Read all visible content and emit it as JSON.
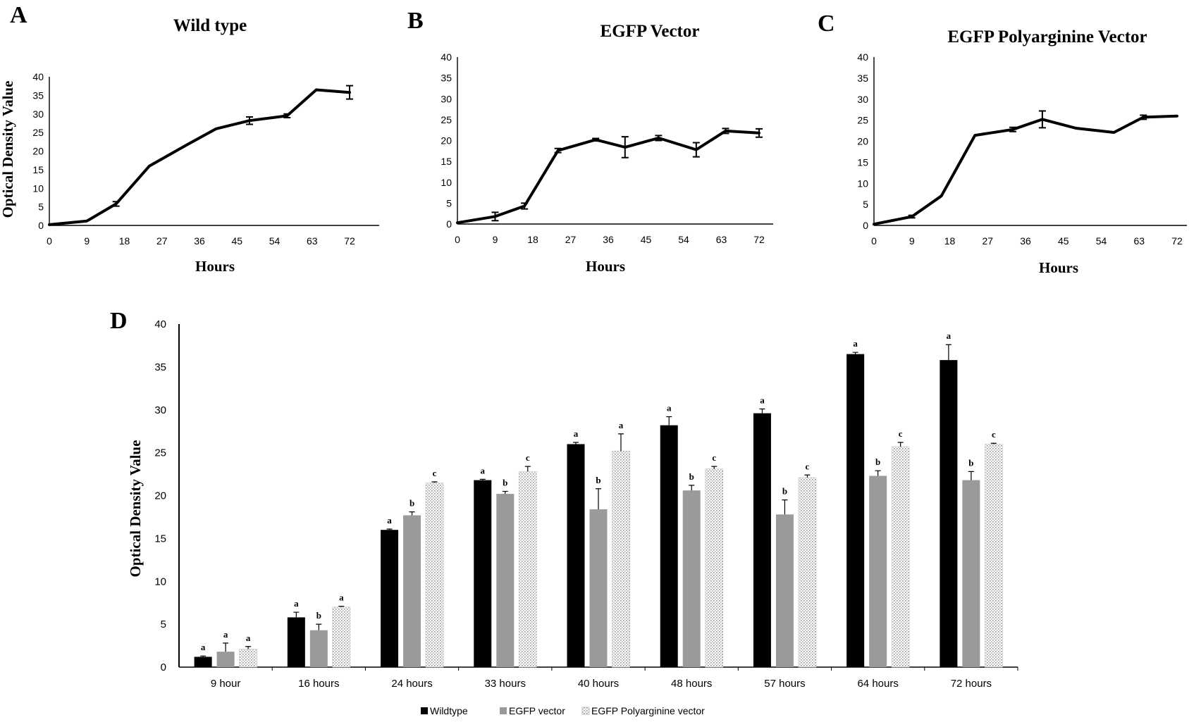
{
  "colors": {
    "line": "#000000",
    "wildtype": "#000000",
    "egfp_vector": "#9a9a9a",
    "egfp_polyarginine": "#dcdcdc"
  },
  "chart_data": [
    {
      "panel": "A",
      "type": "line",
      "title": "Wild type",
      "xlabel": "Hours",
      "ylabel": "Optical Density Value",
      "x_ticks": [
        0,
        9,
        18,
        27,
        36,
        45,
        54,
        63,
        72
      ],
      "y_ticks": [
        0,
        5,
        10,
        15,
        20,
        25,
        30,
        35,
        40
      ],
      "xlim": [
        0,
        78
      ],
      "ylim": [
        0,
        40
      ],
      "x": [
        0,
        9,
        16,
        24,
        33,
        40,
        48,
        57,
        64,
        72
      ],
      "y": [
        0.2,
        1.2,
        5.8,
        16.0,
        21.7,
        26.0,
        28.2,
        29.5,
        36.5,
        35.8
      ],
      "err": [
        0,
        0,
        0.6,
        0,
        0,
        0,
        1.0,
        0.5,
        0,
        1.8
      ]
    },
    {
      "panel": "B",
      "type": "line",
      "title": "EGFP Vector",
      "xlabel": "Hours",
      "ylabel": "",
      "x_ticks": [
        0,
        9,
        18,
        27,
        36,
        45,
        54,
        63,
        72
      ],
      "y_ticks": [
        0,
        5,
        10,
        15,
        20,
        25,
        30,
        35,
        40
      ],
      "xlim": [
        0,
        75
      ],
      "ylim": [
        0,
        40
      ],
      "x": [
        0,
        9,
        16,
        24,
        33,
        40,
        48,
        57,
        64,
        72
      ],
      "y": [
        0.3,
        1.8,
        4.3,
        17.6,
        20.2,
        18.4,
        20.6,
        17.8,
        22.3,
        21.8
      ],
      "err": [
        0,
        1.0,
        0.7,
        0.5,
        0.3,
        2.5,
        0.6,
        1.7,
        0.6,
        1.0
      ]
    },
    {
      "panel": "C",
      "type": "line",
      "title": "EGFP Polyarginine Vector",
      "xlabel": "Hours",
      "ylabel": "",
      "x_ticks": [
        0,
        9,
        18,
        27,
        36,
        45,
        54,
        63,
        72
      ],
      "y_ticks": [
        0,
        5,
        10,
        15,
        20,
        25,
        30,
        35,
        40
      ],
      "xlim": [
        0,
        75
      ],
      "ylim": [
        0,
        40
      ],
      "x": [
        0,
        9,
        16,
        24,
        33,
        40,
        48,
        57,
        64,
        72
      ],
      "y": [
        0.3,
        2.1,
        7.0,
        21.4,
        22.8,
        25.2,
        23.1,
        22.1,
        25.7,
        26.0
      ],
      "err": [
        0,
        0.3,
        0,
        0,
        0.5,
        2.0,
        0,
        0,
        0.5,
        0
      ]
    },
    {
      "panel": "D",
      "type": "bar",
      "xlabel": "",
      "ylabel": "Optical Density Value",
      "y_ticks": [
        0,
        5,
        10,
        15,
        20,
        25,
        30,
        35,
        40
      ],
      "ylim": [
        0,
        40
      ],
      "categories": [
        "9 hour",
        "16 hours",
        "24 hours",
        "33 hours",
        "40 hours",
        "48 hours",
        "57 hours",
        "64 hours",
        "72 hours"
      ],
      "series": [
        {
          "name": "Wildtype",
          "values": [
            1.2,
            5.8,
            16.0,
            21.8,
            26.0,
            28.2,
            29.6,
            36.5,
            35.8
          ],
          "err": [
            0.1,
            0.6,
            0.1,
            0.1,
            0.2,
            1.0,
            0.5,
            0.2,
            1.8
          ],
          "labels": [
            "a",
            "a",
            "a",
            "a",
            "a",
            "a",
            "a",
            "a",
            "a"
          ]
        },
        {
          "name": "EGFP vector",
          "values": [
            1.8,
            4.3,
            17.7,
            20.2,
            18.4,
            20.6,
            17.8,
            22.3,
            21.8
          ],
          "err": [
            1.0,
            0.7,
            0.4,
            0.3,
            2.4,
            0.6,
            1.7,
            0.6,
            1.0
          ],
          "labels": [
            "a",
            "b",
            "b",
            "b",
            "b",
            "b",
            "b",
            "b",
            "b"
          ]
        },
        {
          "name": "EGFP Polyarginine vector",
          "values": [
            2.1,
            7.0,
            21.5,
            22.8,
            25.2,
            23.1,
            22.1,
            25.7,
            26.0
          ],
          "err": [
            0.3,
            0.1,
            0.1,
            0.6,
            2.0,
            0.3,
            0.3,
            0.5,
            0.1
          ],
          "labels": [
            "a",
            "a",
            "c",
            "c",
            "a",
            "c",
            "c",
            "c",
            "c"
          ]
        }
      ],
      "legend": [
        "Wildtype",
        "EGFP vector",
        "EGFP Polyarginine vector"
      ],
      "legend_position": "bottom"
    }
  ]
}
